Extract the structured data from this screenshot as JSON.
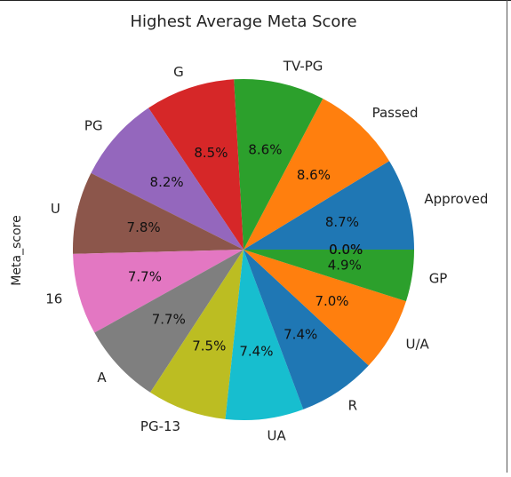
{
  "chart_data": {
    "type": "pie",
    "title": "Highest Average Meta Score",
    "ylabel": "Meta_score",
    "xlabel": "",
    "start_angle_deg": 0,
    "direction": "counterclockwise",
    "slices": [
      {
        "label": "Approved",
        "pct_label": "8.7%",
        "value": 8.7,
        "color": "#1f77b4"
      },
      {
        "label": "Passed",
        "pct_label": "8.6%",
        "value": 8.6,
        "color": "#ff7f0e"
      },
      {
        "label": "TV-PG",
        "pct_label": "8.6%",
        "value": 8.6,
        "color": "#2ca02c"
      },
      {
        "label": "G",
        "pct_label": "8.5%",
        "value": 8.5,
        "color": "#d62728"
      },
      {
        "label": "PG",
        "pct_label": "8.2%",
        "value": 8.2,
        "color": "#9467bd"
      },
      {
        "label": "U",
        "pct_label": "7.8%",
        "value": 7.8,
        "color": "#8c564b"
      },
      {
        "label": "16",
        "pct_label": "7.7%",
        "value": 7.7,
        "color": "#e377c2"
      },
      {
        "label": "A",
        "pct_label": "7.7%",
        "value": 7.7,
        "color": "#7f7f7f"
      },
      {
        "label": "PG-13",
        "pct_label": "7.5%",
        "value": 7.5,
        "color": "#bcbd22"
      },
      {
        "label": "UA",
        "pct_label": "7.4%",
        "value": 7.4,
        "color": "#17becf"
      },
      {
        "label": "R",
        "pct_label": "7.4%",
        "value": 7.4,
        "color": "#1f77b4"
      },
      {
        "label": "U/A",
        "pct_label": "7.0%",
        "value": 7.0,
        "color": "#ff7f0e"
      },
      {
        "label": "GP",
        "pct_label": "4.9%",
        "value": 4.9,
        "color": "#2ca02c"
      },
      {
        "label": "",
        "pct_label": "0.0%",
        "value": 0.0,
        "color": "#d62728"
      },
      {
        "label": "",
        "pct_label": "0.0%",
        "value": 0.0,
        "color": "#9467bd"
      },
      {
        "label": "",
        "pct_label": "0.0%",
        "value": 0.0,
        "color": "#8c564b"
      }
    ]
  }
}
